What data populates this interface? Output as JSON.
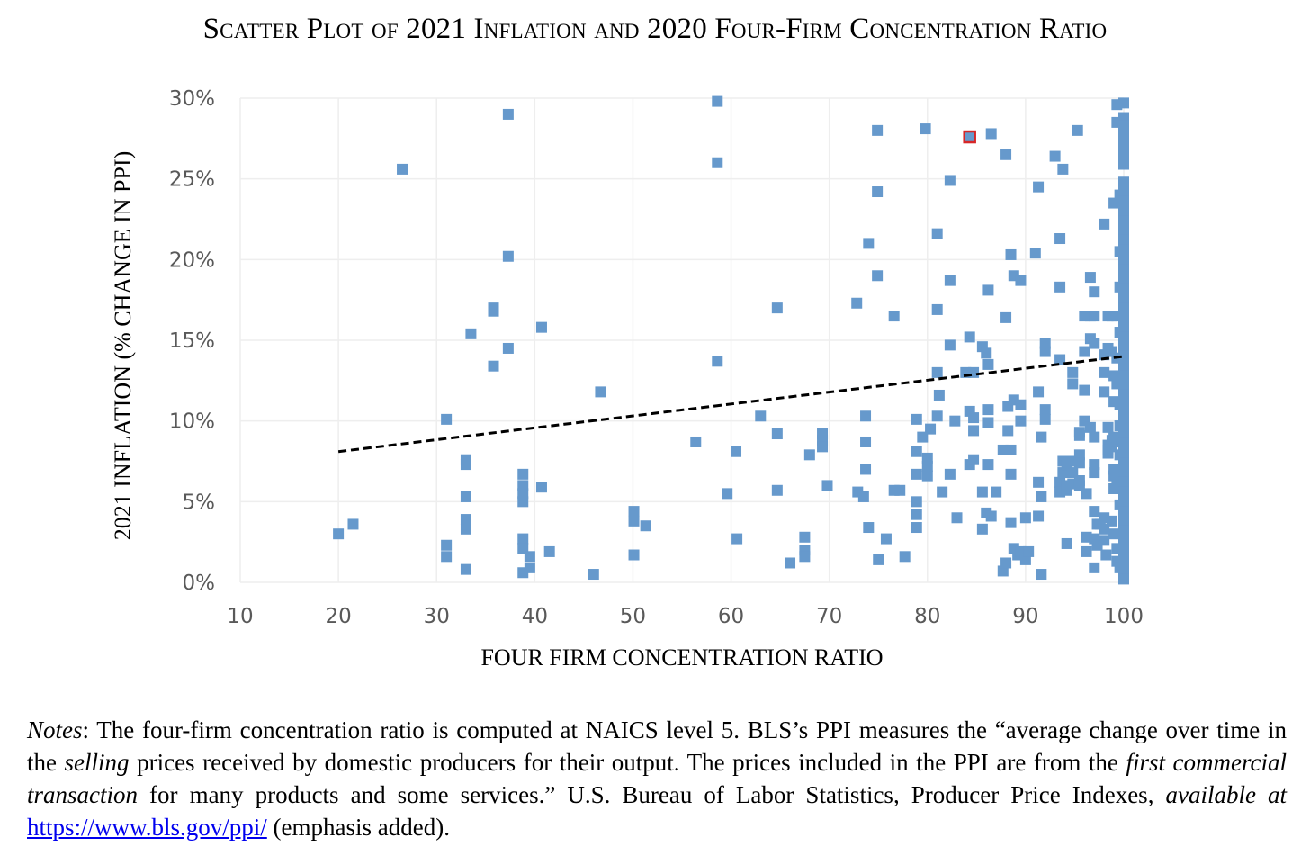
{
  "chart_data": {
    "type": "scatter",
    "title": "Scatter Plot of 2021 Inflation and 2020 Four-Firm Concentration Ratio",
    "xlabel": "FOUR FIRM CONCENTRATION RATIO",
    "ylabel": "2021 INFLATION (% CHANGE IN PPI)",
    "xlim": [
      10,
      100
    ],
    "ylim": [
      0,
      30
    ],
    "x_ticks": [
      "10",
      "20",
      "30",
      "40",
      "50",
      "60",
      "70",
      "80",
      "90",
      "100"
    ],
    "y_ticks": [
      "0%",
      "5%",
      "10%",
      "15%",
      "20%",
      "25%",
      "30%"
    ],
    "grid": true,
    "colors": {
      "points": "#6699cc",
      "highlight_fill": "#6699cc",
      "highlight_border": "#d62728",
      "trendline": "#000000",
      "grid": "#eeeeee"
    },
    "trendline": {
      "style": "dashed",
      "x": [
        20,
        100
      ],
      "y": [
        8.1,
        14.0
      ]
    },
    "highlight": {
      "x": 84.3,
      "y": 27.6
    },
    "series": [
      {
        "points": [
          [
            20.0,
            3.0
          ],
          [
            21.5,
            3.6
          ],
          [
            26.5,
            25.6
          ],
          [
            31.0,
            10.1
          ],
          [
            31.0,
            2.3
          ],
          [
            31.0,
            1.6
          ],
          [
            33.0,
            7.6
          ],
          [
            33.0,
            7.3
          ],
          [
            33.0,
            5.3
          ],
          [
            33.0,
            3.9
          ],
          [
            33.0,
            3.3
          ],
          [
            33.0,
            0.8
          ],
          [
            33.5,
            15.4
          ],
          [
            35.8,
            17.0
          ],
          [
            35.8,
            16.8
          ],
          [
            35.8,
            13.4
          ],
          [
            37.3,
            29.0
          ],
          [
            37.3,
            20.2
          ],
          [
            37.3,
            14.5
          ],
          [
            38.8,
            6.7
          ],
          [
            38.8,
            6.0
          ],
          [
            38.8,
            5.5
          ],
          [
            38.8,
            5.0
          ],
          [
            38.8,
            2.7
          ],
          [
            38.8,
            2.1
          ],
          [
            38.8,
            0.6
          ],
          [
            39.5,
            1.6
          ],
          [
            39.5,
            0.9
          ],
          [
            40.7,
            15.8
          ],
          [
            40.7,
            5.9
          ],
          [
            41.5,
            1.9
          ],
          [
            46.0,
            0.5
          ],
          [
            46.7,
            11.8
          ],
          [
            50.1,
            4.4
          ],
          [
            50.1,
            3.8
          ],
          [
            50.1,
            1.7
          ],
          [
            51.3,
            3.5
          ],
          [
            56.4,
            8.7
          ],
          [
            58.6,
            29.8
          ],
          [
            58.6,
            26.0
          ],
          [
            58.6,
            13.7
          ],
          [
            59.6,
            5.5
          ],
          [
            60.5,
            8.1
          ],
          [
            60.6,
            2.7
          ],
          [
            63.0,
            10.3
          ],
          [
            64.7,
            17.0
          ],
          [
            64.7,
            9.2
          ],
          [
            64.7,
            5.7
          ],
          [
            66.0,
            1.2
          ],
          [
            67.5,
            2.8
          ],
          [
            67.5,
            2.0
          ],
          [
            67.5,
            1.6
          ],
          [
            68.0,
            7.9
          ],
          [
            69.3,
            9.2
          ],
          [
            69.3,
            8.8
          ],
          [
            69.3,
            8.4
          ],
          [
            69.8,
            6.0
          ],
          [
            72.8,
            17.3
          ],
          [
            72.9,
            5.6
          ],
          [
            73.5,
            5.3
          ],
          [
            73.7,
            10.3
          ],
          [
            73.7,
            8.7
          ],
          [
            73.7,
            7.0
          ],
          [
            74.0,
            21.0
          ],
          [
            74.0,
            3.4
          ],
          [
            74.9,
            28.0
          ],
          [
            74.9,
            24.2
          ],
          [
            74.9,
            19.0
          ],
          [
            75.0,
            1.4
          ],
          [
            75.8,
            2.7
          ],
          [
            76.6,
            16.5
          ],
          [
            76.6,
            5.7
          ],
          [
            77.2,
            5.7
          ],
          [
            77.7,
            1.6
          ],
          [
            78.9,
            10.1
          ],
          [
            78.9,
            8.1
          ],
          [
            78.9,
            6.7
          ],
          [
            78.9,
            5.0
          ],
          [
            78.9,
            4.2
          ],
          [
            78.9,
            3.4
          ],
          [
            79.5,
            9.0
          ],
          [
            79.8,
            28.1
          ],
          [
            80.0,
            7.7
          ],
          [
            80.0,
            7.2
          ],
          [
            80.0,
            6.6
          ],
          [
            80.3,
            9.5
          ],
          [
            81.0,
            21.6
          ],
          [
            81.0,
            16.9
          ],
          [
            81.0,
            13.0
          ],
          [
            81.0,
            10.3
          ],
          [
            81.2,
            11.6
          ],
          [
            81.5,
            5.6
          ],
          [
            82.3,
            24.9
          ],
          [
            82.3,
            18.7
          ],
          [
            82.3,
            14.7
          ],
          [
            82.3,
            6.7
          ],
          [
            82.8,
            10.0
          ],
          [
            83.0,
            4.0
          ],
          [
            83.9,
            13.0
          ],
          [
            84.3,
            27.6
          ],
          [
            84.3,
            15.2
          ],
          [
            84.3,
            10.6
          ],
          [
            84.3,
            7.3
          ],
          [
            84.7,
            13.0
          ],
          [
            84.7,
            10.2
          ],
          [
            84.7,
            9.4
          ],
          [
            84.7,
            7.6
          ],
          [
            85.6,
            14.6
          ],
          [
            85.6,
            5.6
          ],
          [
            85.6,
            3.3
          ],
          [
            86.0,
            14.2
          ],
          [
            86.0,
            4.3
          ],
          [
            86.2,
            18.1
          ],
          [
            86.2,
            13.5
          ],
          [
            86.2,
            10.7
          ],
          [
            86.2,
            9.9
          ],
          [
            86.2,
            7.3
          ],
          [
            86.5,
            27.8
          ],
          [
            86.5,
            4.1
          ],
          [
            87.0,
            5.6
          ],
          [
            87.7,
            0.7
          ],
          [
            87.7,
            8.2
          ],
          [
            88.0,
            26.5
          ],
          [
            88.0,
            16.4
          ],
          [
            88.0,
            1.2
          ],
          [
            88.2,
            10.9
          ],
          [
            88.2,
            9.4
          ],
          [
            88.5,
            20.3
          ],
          [
            88.5,
            8.2
          ],
          [
            88.5,
            6.7
          ],
          [
            88.5,
            3.7
          ],
          [
            88.8,
            19.0
          ],
          [
            88.8,
            11.3
          ],
          [
            88.8,
            2.1
          ],
          [
            89.2,
            1.7
          ],
          [
            89.5,
            18.7
          ],
          [
            89.5,
            11.0
          ],
          [
            89.5,
            10.0
          ],
          [
            89.5,
            1.9
          ],
          [
            90.0,
            1.4
          ],
          [
            90.0,
            4.0
          ],
          [
            90.3,
            1.9
          ],
          [
            91.0,
            20.4
          ],
          [
            91.3,
            24.5
          ],
          [
            91.3,
            11.8
          ],
          [
            91.3,
            6.2
          ],
          [
            91.3,
            4.1
          ],
          [
            91.6,
            9.0
          ],
          [
            91.6,
            5.3
          ],
          [
            91.6,
            0.5
          ],
          [
            92.0,
            14.8
          ],
          [
            92.0,
            14.3
          ],
          [
            92.0,
            10.7
          ],
          [
            92.0,
            10.1
          ],
          [
            93.0,
            26.4
          ],
          [
            93.5,
            18.3
          ],
          [
            93.5,
            21.3
          ],
          [
            93.5,
            13.8
          ],
          [
            93.5,
            6.2
          ],
          [
            93.5,
            5.6
          ],
          [
            93.8,
            25.6
          ],
          [
            93.8,
            7.5
          ],
          [
            93.8,
            6.8
          ],
          [
            94.2,
            7.3
          ],
          [
            94.2,
            6.0
          ],
          [
            94.2,
            5.7
          ],
          [
            94.2,
            2.4
          ],
          [
            94.8,
            13.0
          ],
          [
            94.8,
            12.3
          ],
          [
            94.8,
            7.5
          ],
          [
            94.8,
            6.8
          ],
          [
            94.8,
            6.1
          ],
          [
            95.3,
            28.0
          ],
          [
            95.5,
            9.3
          ],
          [
            95.5,
            9.1
          ],
          [
            95.5,
            7.9
          ],
          [
            95.5,
            7.4
          ],
          [
            95.5,
            6.3
          ],
          [
            95.5,
            6.0
          ],
          [
            96.0,
            16.5
          ],
          [
            96.0,
            14.3
          ],
          [
            96.0,
            11.9
          ],
          [
            96.0,
            10.0
          ],
          [
            96.2,
            5.5
          ],
          [
            96.2,
            1.9
          ],
          [
            96.2,
            2.8
          ],
          [
            96.6,
            18.9
          ],
          [
            96.6,
            16.5
          ],
          [
            96.6,
            15.1
          ],
          [
            96.6,
            9.6
          ],
          [
            97.0,
            18.0
          ],
          [
            97.0,
            16.5
          ],
          [
            97.0,
            14.8
          ],
          [
            97.0,
            9.0
          ],
          [
            97.0,
            7.3
          ],
          [
            97.0,
            6.8
          ],
          [
            97.0,
            4.4
          ],
          [
            97.0,
            2.7
          ],
          [
            97.0,
            0.9
          ],
          [
            97.3,
            2.3
          ],
          [
            97.3,
            3.6
          ],
          [
            97.6,
            3.6
          ],
          [
            98.0,
            22.2
          ],
          [
            98.0,
            14.1
          ],
          [
            98.0,
            13.0
          ],
          [
            98.0,
            11.8
          ],
          [
            98.0,
            4.0
          ],
          [
            98.0,
            3.3
          ],
          [
            98.0,
            2.6
          ],
          [
            98.2,
            1.7
          ],
          [
            98.4,
            16.5
          ],
          [
            98.4,
            14.5
          ],
          [
            98.4,
            9.6
          ],
          [
            98.4,
            8.5
          ],
          [
            98.4,
            8.2
          ],
          [
            98.4,
            8.0
          ],
          [
            98.8,
            16.5
          ],
          [
            98.8,
            14.3
          ],
          [
            98.8,
            8.8
          ],
          [
            98.8,
            8.4
          ],
          [
            98.8,
            3.8
          ],
          [
            99.0,
            23.5
          ],
          [
            99.0,
            12.8
          ],
          [
            99.0,
            11.2
          ],
          [
            99.0,
            9.0
          ],
          [
            99.0,
            7.0
          ],
          [
            99.0,
            6.6
          ],
          [
            99.0,
            5.8
          ],
          [
            99.0,
            3.0
          ],
          [
            99.3,
            29.6
          ],
          [
            99.3,
            28.5
          ],
          [
            99.3,
            16.5
          ],
          [
            99.3,
            13.9
          ],
          [
            99.3,
            12.3
          ],
          [
            99.3,
            8.7
          ],
          [
            99.3,
            6.0
          ],
          [
            99.3,
            2.1
          ],
          [
            99.3,
            1.3
          ],
          [
            99.6,
            24.0
          ],
          [
            99.6,
            20.5
          ],
          [
            99.6,
            18.3
          ],
          [
            99.6,
            15.5
          ],
          [
            99.6,
            11.0
          ],
          [
            99.6,
            9.7
          ],
          [
            99.6,
            8.9
          ],
          [
            99.6,
            7.9
          ],
          [
            99.6,
            4.8
          ],
          [
            99.6,
            0.9
          ],
          [
            100,
            29.7
          ],
          [
            100,
            28.8
          ],
          [
            100,
            28.3
          ],
          [
            100,
            27.7
          ],
          [
            100,
            27.1
          ],
          [
            100,
            26.5
          ],
          [
            100,
            25.9
          ],
          [
            100,
            24.8
          ],
          [
            100,
            24.2
          ],
          [
            100,
            23.6
          ],
          [
            100,
            23.0
          ],
          [
            100,
            22.4
          ],
          [
            100,
            21.8
          ],
          [
            100,
            21.2
          ],
          [
            100,
            20.6
          ],
          [
            100,
            20.0
          ],
          [
            100,
            19.4
          ],
          [
            100,
            18.8
          ],
          [
            100,
            18.2
          ],
          [
            100,
            17.6
          ],
          [
            100,
            17.0
          ],
          [
            100,
            16.4
          ],
          [
            100,
            15.8
          ],
          [
            100,
            15.2
          ],
          [
            100,
            14.6
          ],
          [
            100,
            14.0
          ],
          [
            100,
            13.4
          ],
          [
            100,
            12.8
          ],
          [
            100,
            12.2
          ],
          [
            100,
            11.6
          ],
          [
            100,
            11.0
          ],
          [
            100,
            10.4
          ],
          [
            100,
            9.8
          ],
          [
            100,
            9.2
          ],
          [
            100,
            8.6
          ],
          [
            100,
            8.0
          ],
          [
            100,
            7.4
          ],
          [
            100,
            6.8
          ],
          [
            100,
            6.2
          ],
          [
            100,
            5.6
          ],
          [
            100,
            5.0
          ],
          [
            100,
            4.4
          ],
          [
            100,
            3.8
          ],
          [
            100,
            3.2
          ],
          [
            100,
            2.6
          ],
          [
            100,
            2.0
          ],
          [
            100,
            1.4
          ],
          [
            100,
            0.8
          ],
          [
            100,
            0.2
          ]
        ]
      }
    ]
  },
  "notes": {
    "label": "Notes",
    "text_1": ": The four-firm concentration ratio is computed at NAICS level 5. BLS’s PPI measures the “average change over time in the ",
    "emph_1": "selling",
    "text_2": " prices received by domestic producers for their output. The prices included in the PPI are from the ",
    "emph_2": "first commercial transaction",
    "text_3": " for many products and some services.” U.S. Bureau of Labor Statistics, Producer Price Indexes, ",
    "emph_3": "available at",
    "link": "https://www.bls.gov/ppi/",
    "text_4": " (emphasis added)."
  }
}
